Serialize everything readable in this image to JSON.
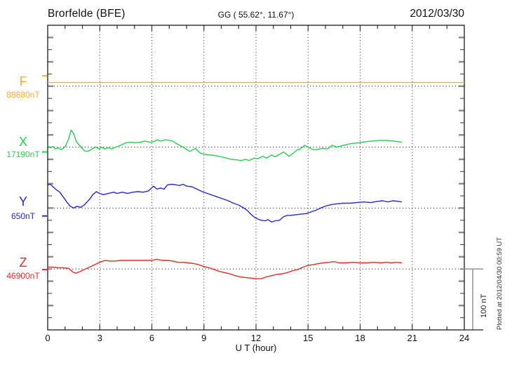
{
  "header": {
    "station": "Brorfelde (BFE)",
    "coords": "GG ( 55.62°,  11.67°)",
    "date": "2012/03/30"
  },
  "channels": [
    {
      "letter": "F",
      "value_label": "88880nT",
      "color": "#FFAB2E"
    },
    {
      "letter": "X",
      "value_label": "17190nT",
      "color": "#29CC52"
    },
    {
      "letter": "Y",
      "value_label": "650nT",
      "color": "#2828CC"
    },
    {
      "letter": "Z",
      "value_label": "46900nT",
      "color": "#DF2B2B"
    }
  ],
  "axis": {
    "xlabel": "U T (hour)",
    "x_ticks": [
      0,
      3,
      6,
      9,
      12,
      15,
      18,
      21,
      24
    ]
  },
  "scalebar": {
    "label": "100 nT",
    "nT": 100
  },
  "footer": {
    "plotted_at": "Plotted at 2012/04/30 00:59 UT"
  },
  "chart_data": {
    "type": "line",
    "title": "Brorfelde (BFE) magnetogram 2012/03/30",
    "xlabel": "U T (hour)",
    "x_range": [
      0,
      24
    ],
    "x_ticks": [
      0,
      3,
      6,
      9,
      12,
      15,
      18,
      21,
      24
    ],
    "minor_tick_step_hours": 1,
    "y_tick_step_nT": 20,
    "band_span_nT": 100,
    "grid": "dotted vertical lines every 3 h; dotted horizontal baseline per channel",
    "legend_position": "left margin channel labels",
    "edge_marks": [
      {
        "series": "F",
        "value_nT": 88897
      },
      {
        "series": "X",
        "value_nT": 17182
      },
      {
        "series": "Y",
        "value_nT": 637
      },
      {
        "series": "Z",
        "value_nT": 46899
      }
    ],
    "series": [
      {
        "name": "F",
        "color": "#FFAB2E",
        "baseline_nT": 88880,
        "baseline_label": "88880nT",
        "points": [
          [
            0,
            88886
          ],
          [
            24,
            88886
          ]
        ]
      },
      {
        "name": "X",
        "color": "#29CC52",
        "baseline_nT": 17190,
        "baseline_label": "17190nT",
        "points": [
          [
            0.0,
            17192
          ],
          [
            0.15,
            17189
          ],
          [
            0.3,
            17191
          ],
          [
            0.45,
            17187
          ],
          [
            0.6,
            17189
          ],
          [
            0.75,
            17186
          ],
          [
            0.9,
            17188
          ],
          [
            1.05,
            17193
          ],
          [
            1.2,
            17203
          ],
          [
            1.35,
            17218
          ],
          [
            1.5,
            17212
          ],
          [
            1.65,
            17199
          ],
          [
            1.8,
            17194
          ],
          [
            1.95,
            17189
          ],
          [
            2.1,
            17184
          ],
          [
            2.3,
            17183
          ],
          [
            2.5,
            17186
          ],
          [
            2.65,
            17189
          ],
          [
            2.8,
            17190
          ],
          [
            2.95,
            17187
          ],
          [
            3.1,
            17190
          ],
          [
            3.3,
            17187
          ],
          [
            3.5,
            17189
          ],
          [
            3.7,
            17187
          ],
          [
            3.9,
            17190
          ],
          [
            4.2,
            17193
          ],
          [
            4.5,
            17197
          ],
          [
            4.8,
            17198
          ],
          [
            5.0,
            17197
          ],
          [
            5.3,
            17198
          ],
          [
            5.6,
            17200
          ],
          [
            5.9,
            17198
          ],
          [
            6.1,
            17199
          ],
          [
            6.3,
            17202
          ],
          [
            6.5,
            17200
          ],
          [
            6.8,
            17202
          ],
          [
            7.0,
            17201
          ],
          [
            7.2,
            17200
          ],
          [
            7.4,
            17196
          ],
          [
            7.6,
            17193
          ],
          [
            7.8,
            17190
          ],
          [
            8.0,
            17186
          ],
          [
            8.2,
            17183
          ],
          [
            8.5,
            17188
          ],
          [
            8.8,
            17180
          ],
          [
            9.1,
            17178
          ],
          [
            9.4,
            17177
          ],
          [
            9.7,
            17176
          ],
          [
            10.0,
            17174
          ],
          [
            10.3,
            17172
          ],
          [
            10.6,
            17170
          ],
          [
            10.9,
            17169
          ],
          [
            11.15,
            17168
          ],
          [
            11.4,
            17170
          ],
          [
            11.6,
            17168
          ],
          [
            11.9,
            17172
          ],
          [
            12.1,
            17171
          ],
          [
            12.4,
            17175
          ],
          [
            12.6,
            17172
          ],
          [
            12.9,
            17177
          ],
          [
            13.1,
            17174
          ],
          [
            13.4,
            17179
          ],
          [
            13.6,
            17182
          ],
          [
            13.9,
            17175
          ],
          [
            14.1,
            17179
          ],
          [
            14.35,
            17185
          ],
          [
            14.55,
            17187
          ],
          [
            14.8,
            17193
          ],
          [
            15.05,
            17189
          ],
          [
            15.3,
            17186
          ],
          [
            15.55,
            17186
          ],
          [
            15.8,
            17188
          ],
          [
            16.1,
            17187
          ],
          [
            16.4,
            17193
          ],
          [
            16.65,
            17190
          ],
          [
            16.9,
            17192
          ],
          [
            17.2,
            17194
          ],
          [
            17.5,
            17196
          ],
          [
            17.9,
            17197
          ],
          [
            18.3,
            17199
          ],
          [
            18.7,
            17200
          ],
          [
            19.1,
            17201
          ],
          [
            19.5,
            17201
          ],
          [
            19.9,
            17200
          ],
          [
            20.2,
            17199
          ],
          [
            20.4,
            17198
          ]
        ]
      },
      {
        "name": "Y",
        "color": "#2828CC",
        "baseline_nT": 650,
        "baseline_label": "650nT",
        "points": [
          [
            0.0,
            688
          ],
          [
            0.15,
            689
          ],
          [
            0.3,
            685
          ],
          [
            0.5,
            680
          ],
          [
            0.7,
            676
          ],
          [
            0.9,
            668
          ],
          [
            1.1,
            660
          ],
          [
            1.3,
            653
          ],
          [
            1.5,
            650
          ],
          [
            1.7,
            653
          ],
          [
            1.9,
            651
          ],
          [
            2.1,
            655
          ],
          [
            2.4,
            664
          ],
          [
            2.6,
            672
          ],
          [
            2.8,
            677
          ],
          [
            3.0,
            674
          ],
          [
            3.2,
            672
          ],
          [
            3.5,
            674
          ],
          [
            3.8,
            676
          ],
          [
            4.0,
            674
          ],
          [
            4.3,
            676
          ],
          [
            4.6,
            674
          ],
          [
            4.9,
            676
          ],
          [
            5.2,
            677
          ],
          [
            5.5,
            676
          ],
          [
            5.8,
            678
          ],
          [
            6.1,
            686
          ],
          [
            6.3,
            681
          ],
          [
            6.5,
            683
          ],
          [
            6.7,
            681
          ],
          [
            6.9,
            688
          ],
          [
            7.15,
            689
          ],
          [
            7.4,
            688
          ],
          [
            7.6,
            687
          ],
          [
            7.8,
            689
          ],
          [
            8.0,
            686
          ],
          [
            8.3,
            685
          ],
          [
            8.6,
            681
          ],
          [
            8.9,
            677
          ],
          [
            9.2,
            674
          ],
          [
            9.5,
            671
          ],
          [
            9.8,
            668
          ],
          [
            10.1,
            665
          ],
          [
            10.4,
            662
          ],
          [
            10.7,
            658
          ],
          [
            11.0,
            655
          ],
          [
            11.3,
            650
          ],
          [
            11.5,
            646
          ],
          [
            11.7,
            640
          ],
          [
            11.9,
            635
          ],
          [
            12.1,
            632
          ],
          [
            12.3,
            630
          ],
          [
            12.5,
            629
          ],
          [
            12.7,
            631
          ],
          [
            12.9,
            627
          ],
          [
            13.1,
            629
          ],
          [
            13.35,
            630
          ],
          [
            13.6,
            636
          ],
          [
            13.8,
            638
          ],
          [
            14.0,
            638
          ],
          [
            14.3,
            639
          ],
          [
            14.6,
            640
          ],
          [
            14.9,
            641
          ],
          [
            15.2,
            644
          ],
          [
            15.5,
            647
          ],
          [
            15.8,
            651
          ],
          [
            16.1,
            654
          ],
          [
            16.4,
            656
          ],
          [
            16.7,
            657
          ],
          [
            17.0,
            658
          ],
          [
            17.4,
            658
          ],
          [
            17.8,
            659
          ],
          [
            18.2,
            660
          ],
          [
            18.6,
            659
          ],
          [
            19.0,
            661
          ],
          [
            19.3,
            662
          ],
          [
            19.6,
            660
          ],
          [
            19.9,
            662
          ],
          [
            20.2,
            661
          ],
          [
            20.4,
            660
          ]
        ]
      },
      {
        "name": "Z",
        "color": "#DF2B2B",
        "baseline_nT": 46900,
        "baseline_label": "46900nT",
        "points": [
          [
            0.0,
            46903
          ],
          [
            0.3,
            46903
          ],
          [
            0.6,
            46902
          ],
          [
            0.9,
            46902
          ],
          [
            1.2,
            46901
          ],
          [
            1.45,
            46895
          ],
          [
            1.6,
            46893
          ],
          [
            1.8,
            46895
          ],
          [
            2.1,
            46899
          ],
          [
            2.4,
            46903
          ],
          [
            2.7,
            46907
          ],
          [
            3.0,
            46911
          ],
          [
            3.3,
            46914
          ],
          [
            3.6,
            46913
          ],
          [
            3.9,
            46913
          ],
          [
            4.2,
            46914
          ],
          [
            4.5,
            46914
          ],
          [
            4.8,
            46914
          ],
          [
            5.1,
            46914
          ],
          [
            5.4,
            46914
          ],
          [
            5.7,
            46914
          ],
          [
            6.0,
            46914
          ],
          [
            6.3,
            46916
          ],
          [
            6.6,
            46914
          ],
          [
            6.9,
            46914
          ],
          [
            7.2,
            46913
          ],
          [
            7.5,
            46911
          ],
          [
            7.8,
            46911
          ],
          [
            8.1,
            46910
          ],
          [
            8.4,
            46909
          ],
          [
            8.7,
            46907
          ],
          [
            9.0,
            46904
          ],
          [
            9.3,
            46902
          ],
          [
            9.6,
            46899
          ],
          [
            9.9,
            46896
          ],
          [
            10.2,
            46894
          ],
          [
            10.5,
            46892
          ],
          [
            10.8,
            46889
          ],
          [
            11.1,
            46887
          ],
          [
            11.4,
            46886
          ],
          [
            11.7,
            46885
          ],
          [
            12.0,
            46884
          ],
          [
            12.3,
            46884
          ],
          [
            12.6,
            46887
          ],
          [
            12.9,
            46889
          ],
          [
            13.2,
            46891
          ],
          [
            13.5,
            46892
          ],
          [
            13.8,
            46894
          ],
          [
            14.1,
            46897
          ],
          [
            14.4,
            46899
          ],
          [
            14.7,
            46903
          ],
          [
            15.0,
            46906
          ],
          [
            15.3,
            46907
          ],
          [
            15.6,
            46909
          ],
          [
            15.9,
            46910
          ],
          [
            16.2,
            46911
          ],
          [
            16.5,
            46912
          ],
          [
            16.8,
            46910
          ],
          [
            17.2,
            46910
          ],
          [
            17.6,
            46911
          ],
          [
            18.0,
            46910
          ],
          [
            18.4,
            46910
          ],
          [
            18.8,
            46911
          ],
          [
            19.2,
            46910
          ],
          [
            19.5,
            46911
          ],
          [
            19.8,
            46910
          ],
          [
            20.1,
            46911
          ],
          [
            20.4,
            46910
          ]
        ]
      }
    ]
  }
}
